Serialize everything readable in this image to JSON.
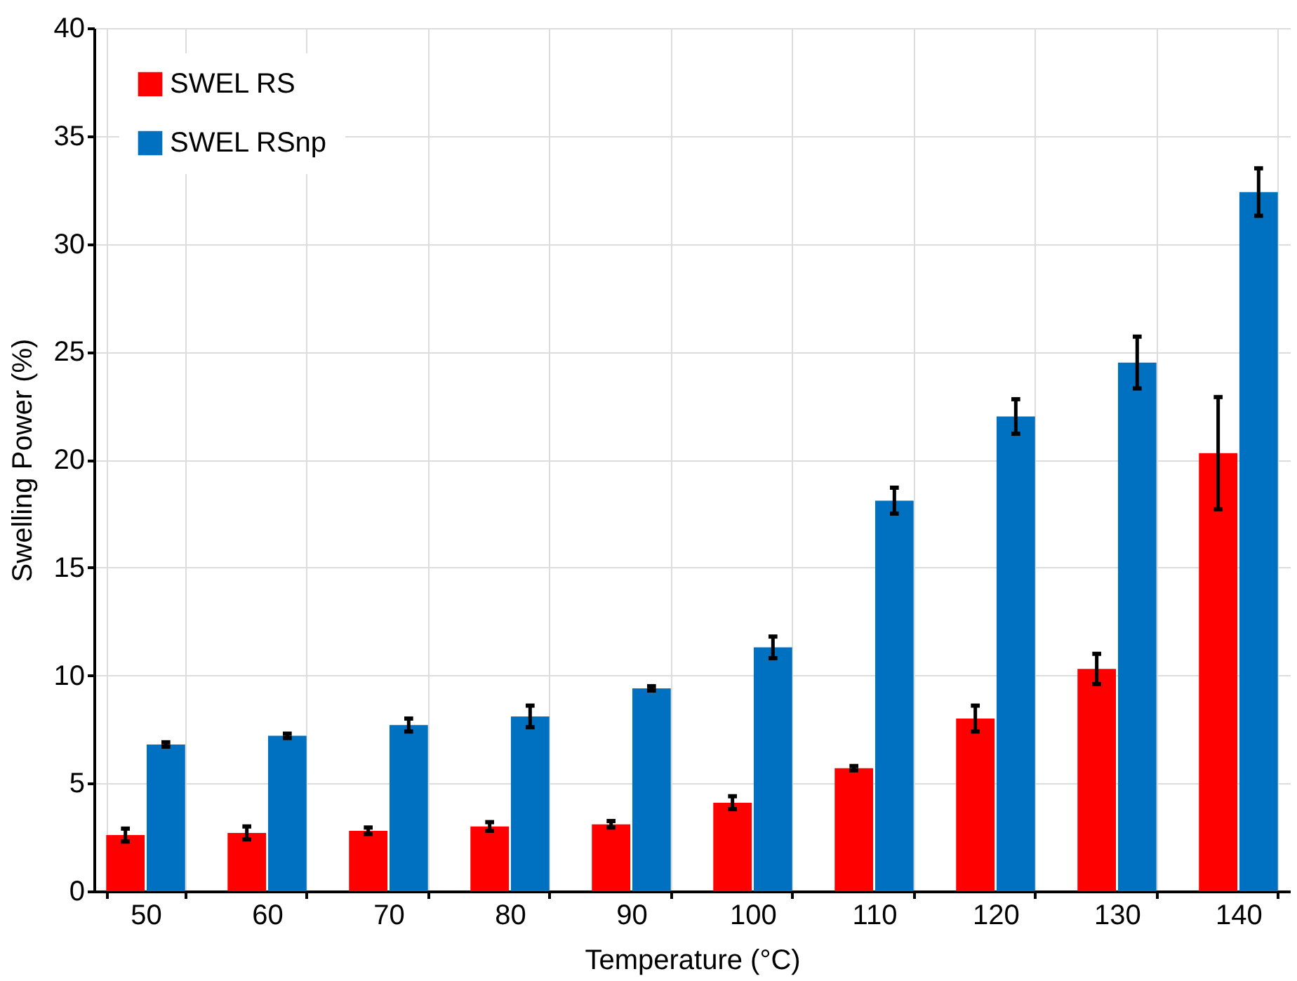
{
  "chart_data": {
    "type": "bar",
    "xlabel": "Temperature (°C)",
    "ylabel": "Swelling Power  (%)",
    "categories": [
      "50",
      "60",
      "70",
      "80",
      "90",
      "100",
      "110",
      "120",
      "130",
      "140"
    ],
    "series": [
      {
        "name": "SWEL RS",
        "color": "#ff0000",
        "values": [
          2.6,
          2.7,
          2.8,
          3.0,
          3.1,
          4.1,
          5.7,
          8.0,
          10.3,
          20.3
        ],
        "errors": [
          0.3,
          0.3,
          0.15,
          0.2,
          0.15,
          0.3,
          0.1,
          0.6,
          0.7,
          2.6
        ]
      },
      {
        "name": "SWEL RSnp",
        "color": "#0070c0",
        "values": [
          6.8,
          7.2,
          7.7,
          8.1,
          9.4,
          11.3,
          18.1,
          22.0,
          24.5,
          32.4
        ],
        "errors": [
          0.1,
          0.1,
          0.3,
          0.5,
          0.1,
          0.5,
          0.6,
          0.8,
          1.2,
          1.1
        ]
      }
    ],
    "ylim": [
      0,
      40
    ],
    "yticks": [
      0,
      5,
      10,
      15,
      20,
      25,
      30,
      35,
      40
    ],
    "grid": true,
    "legend": "top left"
  }
}
